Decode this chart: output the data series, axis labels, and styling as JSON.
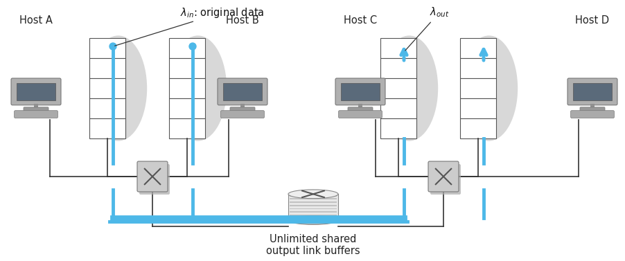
{
  "bg_color": "#ffffff",
  "blue": "#4db8e8",
  "conn_color": "#333333",
  "gray_box": "#c8c8c8",
  "gray_shadow": "#c0c0c0",
  "host_labels": [
    "Host A",
    "Host B",
    "Host C",
    "Host D"
  ],
  "lambda_in_text": "$\\lambda_{in}$: original data",
  "lambda_out_text": "$\\lambda_{out}$",
  "unlimited_text": "Unlimited shared\noutput link buffers",
  "lw_blue": 3.5,
  "lw_conn": 1.2
}
